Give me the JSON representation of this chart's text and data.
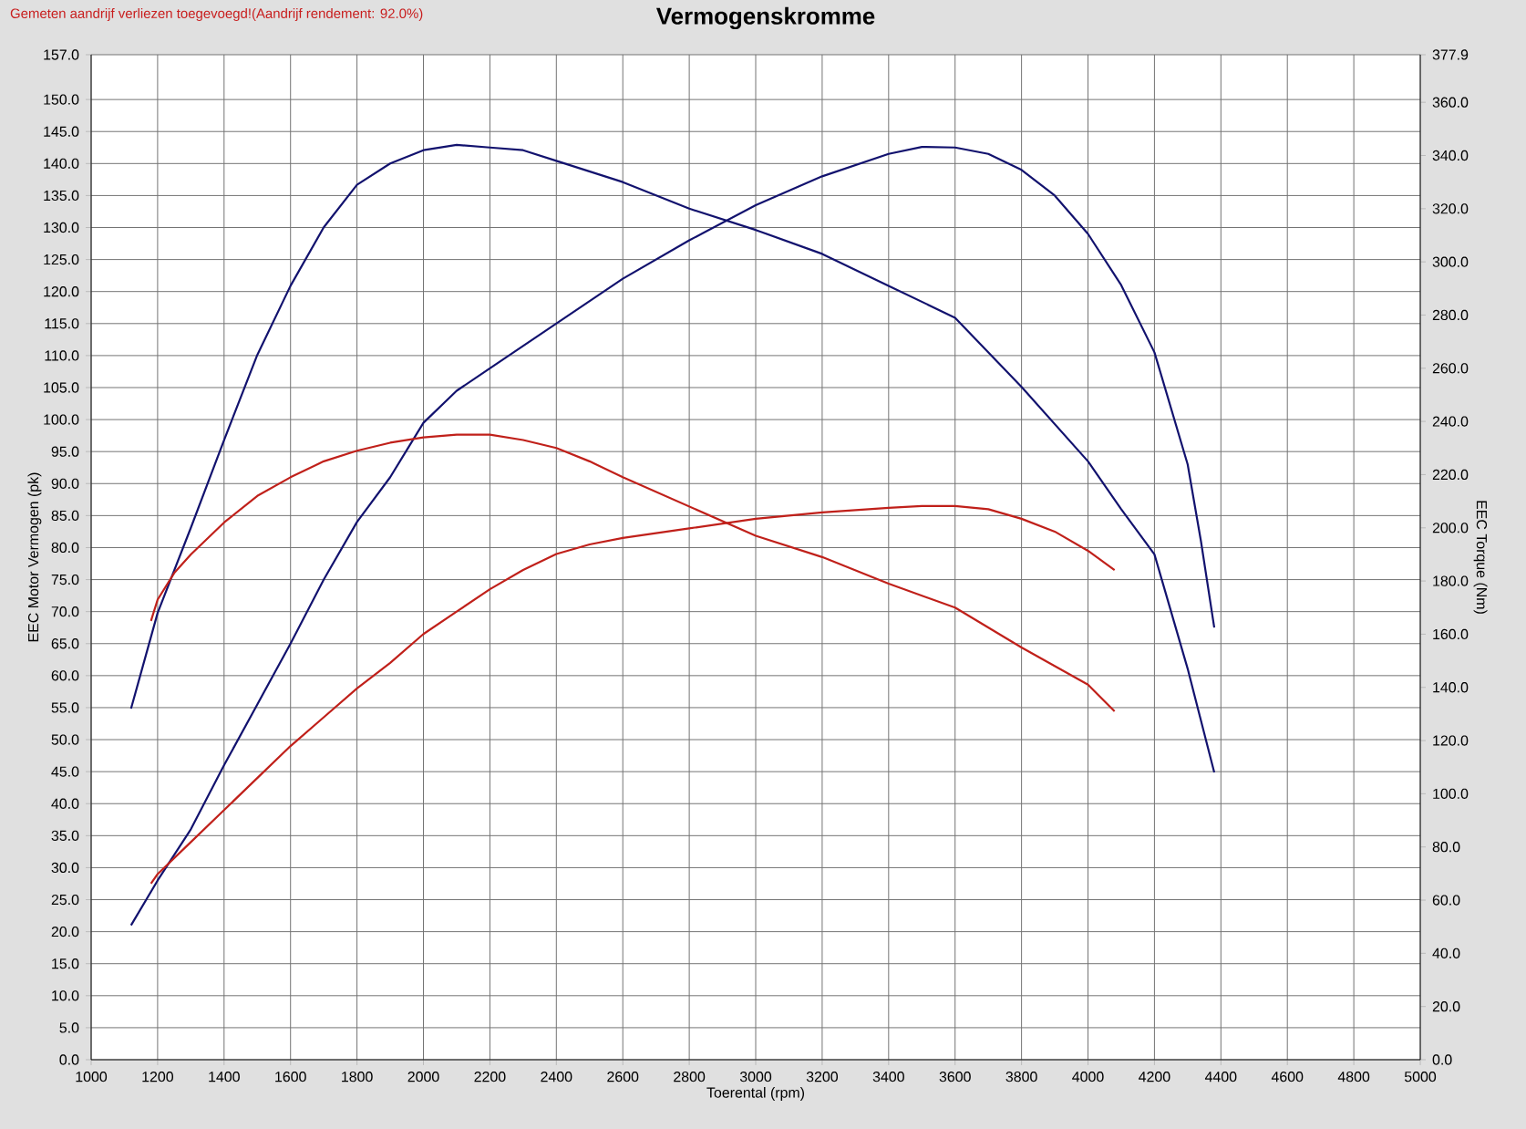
{
  "chart_data": {
    "type": "line",
    "title": "Vermogenskromme",
    "annotations": [
      "Gemeten aandrijf verliezen toegevoegd!(Aandrijf rendement: 92.0%)"
    ],
    "xlabel": "Toerental (rpm)",
    "ylabel": "EEC Motor Vermogen (pk)",
    "y2label": "EEC Torque (Nm)",
    "xlim": [
      1000,
      5000
    ],
    "ylim": [
      0,
      157
    ],
    "y2lim": [
      0,
      377.9
    ],
    "xticks": [
      1000,
      1200,
      1400,
      1600,
      1800,
      2000,
      2200,
      2400,
      2600,
      2800,
      3000,
      3200,
      3400,
      3600,
      3800,
      4000,
      4200,
      4400,
      4600,
      4800,
      5000
    ],
    "yticks": [
      {
        "value": 0,
        "label": "0.0"
      },
      {
        "value": 5,
        "label": "5.0"
      },
      {
        "value": 10,
        "label": "10.0"
      },
      {
        "value": 15,
        "label": "15.0"
      },
      {
        "value": 20,
        "label": "20.0"
      },
      {
        "value": 25,
        "label": "25.0"
      },
      {
        "value": 30,
        "label": "30.0"
      },
      {
        "value": 35,
        "label": "35.0"
      },
      {
        "value": 40,
        "label": "40.0"
      },
      {
        "value": 45,
        "label": "45.0"
      },
      {
        "value": 50,
        "label": "50.0"
      },
      {
        "value": 55,
        "label": "55.0"
      },
      {
        "value": 60,
        "label": "60.0"
      },
      {
        "value": 65,
        "label": "65.0"
      },
      {
        "value": 70,
        "label": "70.0"
      },
      {
        "value": 75,
        "label": "75.0"
      },
      {
        "value": 80,
        "label": "80.0"
      },
      {
        "value": 85,
        "label": "85.0"
      },
      {
        "value": 90,
        "label": "90.0"
      },
      {
        "value": 95,
        "label": "95.0"
      },
      {
        "value": 100,
        "label": "100.0"
      },
      {
        "value": 105,
        "label": "105.0"
      },
      {
        "value": 110,
        "label": "110.0"
      },
      {
        "value": 115,
        "label": "115.0"
      },
      {
        "value": 120,
        "label": "120.0"
      },
      {
        "value": 125,
        "label": "125.0"
      },
      {
        "value": 130,
        "label": "130.0"
      },
      {
        "value": 135,
        "label": "135.0"
      },
      {
        "value": 140,
        "label": "140.0"
      },
      {
        "value": 145,
        "label": "145.0"
      },
      {
        "value": 150,
        "label": "150.0"
      },
      {
        "value": 157,
        "label": "157.0"
      }
    ],
    "y2ticks": [
      {
        "value": 0,
        "label": "0.0"
      },
      {
        "value": 20,
        "label": "20.0"
      },
      {
        "value": 40,
        "label": "40.0"
      },
      {
        "value": 60,
        "label": "60.0"
      },
      {
        "value": 80,
        "label": "80.0"
      },
      {
        "value": 100,
        "label": "100.0"
      },
      {
        "value": 120,
        "label": "120.0"
      },
      {
        "value": 140,
        "label": "140.0"
      },
      {
        "value": 160,
        "label": "160.0"
      },
      {
        "value": 180,
        "label": "180.0"
      },
      {
        "value": 200,
        "label": "200.0"
      },
      {
        "value": 220,
        "label": "220.0"
      },
      {
        "value": 240,
        "label": "240.0"
      },
      {
        "value": 260,
        "label": "260.0"
      },
      {
        "value": 280,
        "label": "280.0"
      },
      {
        "value": 300,
        "label": "300.0"
      },
      {
        "value": 320,
        "label": "320.0"
      },
      {
        "value": 340,
        "label": "340.0"
      },
      {
        "value": 360,
        "label": "360.0"
      },
      {
        "value": 377.9,
        "label": "377.9"
      }
    ],
    "grid": true,
    "series": [
      {
        "color": "#12126e",
        "x": [
          1120,
          1200,
          1300,
          1400,
          1500,
          1600,
          1700,
          1800,
          1900,
          2000,
          2100,
          2200,
          2400,
          2600,
          2800,
          3000,
          3200,
          3400,
          3500,
          3600,
          3700,
          3800,
          3900,
          4000,
          4100,
          4200,
          4300,
          4340,
          4380
        ],
        "values": [
          21,
          28,
          36,
          46,
          55.5,
          65,
          75,
          84,
          91,
          99.5,
          104.5,
          108,
          115,
          122,
          128,
          133.5,
          138,
          141.5,
          142.6,
          142.5,
          141.5,
          139,
          135,
          129,
          121,
          110.5,
          93,
          81,
          67.5
        ]
      },
      {
        "color": "#12126e",
        "axis": "y2",
        "x": [
          1120,
          1200,
          1300,
          1400,
          1500,
          1600,
          1700,
          1800,
          1900,
          2000,
          2100,
          2200,
          2300,
          2400,
          2600,
          2800,
          3000,
          3200,
          3400,
          3600,
          3800,
          4000,
          4100,
          4200,
          4300,
          4380
        ],
        "values": [
          132,
          168,
          200,
          233,
          265,
          291,
          313,
          329,
          337,
          342,
          344,
          343,
          342,
          338,
          330,
          320,
          312,
          303,
          291,
          279,
          253,
          225,
          207,
          190,
          147,
          108
        ]
      },
      {
        "color": "#c0201a",
        "x": [
          1180,
          1200,
          1300,
          1400,
          1500,
          1600,
          1700,
          1800,
          1900,
          2000,
          2100,
          2200,
          2300,
          2400,
          2500,
          2600,
          2800,
          3000,
          3200,
          3400,
          3500,
          3600,
          3700,
          3800,
          3900,
          4000,
          4080
        ],
        "values": [
          27.5,
          29,
          34,
          39,
          44,
          49,
          53.5,
          58,
          62,
          66.5,
          70,
          73.5,
          76.5,
          79,
          80.5,
          81.5,
          83,
          84.5,
          85.5,
          86.2,
          86.5,
          86.5,
          86,
          84.5,
          82.5,
          79.5,
          76.5
        ]
      },
      {
        "color": "#c0201a",
        "axis": "y2",
        "x": [
          1180,
          1200,
          1250,
          1300,
          1400,
          1500,
          1600,
          1700,
          1800,
          1900,
          2000,
          2100,
          2200,
          2300,
          2400,
          2500,
          2600,
          2800,
          3000,
          3200,
          3400,
          3600,
          3800,
          4000,
          4080
        ],
        "values": [
          165,
          173,
          183,
          190,
          202,
          212,
          219,
          225,
          229,
          232,
          234,
          235,
          235,
          233,
          230,
          225,
          219,
          208,
          197,
          189,
          179,
          170,
          155,
          141,
          131
        ]
      }
    ]
  }
}
